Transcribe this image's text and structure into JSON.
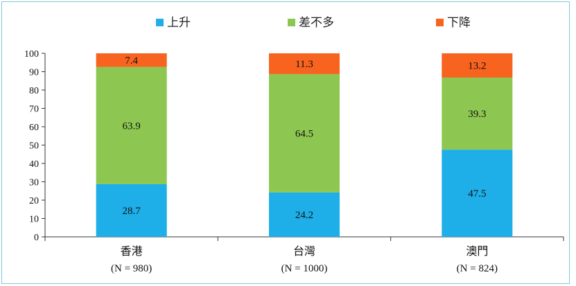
{
  "chart_data": {
    "type": "bar",
    "stacked": true,
    "categories": [
      "香港",
      "台灣",
      "澳門"
    ],
    "category_notes": [
      "(N = 980)",
      "(N = 1000)",
      "(N = 824)"
    ],
    "series": [
      {
        "name": "上升",
        "color": "#1eaee8",
        "values": [
          28.7,
          24.2,
          47.5
        ]
      },
      {
        "name": "差不多",
        "color": "#8dc751",
        "values": [
          63.9,
          64.5,
          39.3
        ]
      },
      {
        "name": "下降",
        "color": "#f8631f",
        "values": [
          7.4,
          11.3,
          13.2
        ]
      }
    ],
    "ylim": [
      0,
      100
    ],
    "yticks": [
      0,
      10,
      20,
      30,
      40,
      50,
      60,
      70,
      80,
      90,
      100
    ],
    "legend_position": "top",
    "grid": false
  }
}
